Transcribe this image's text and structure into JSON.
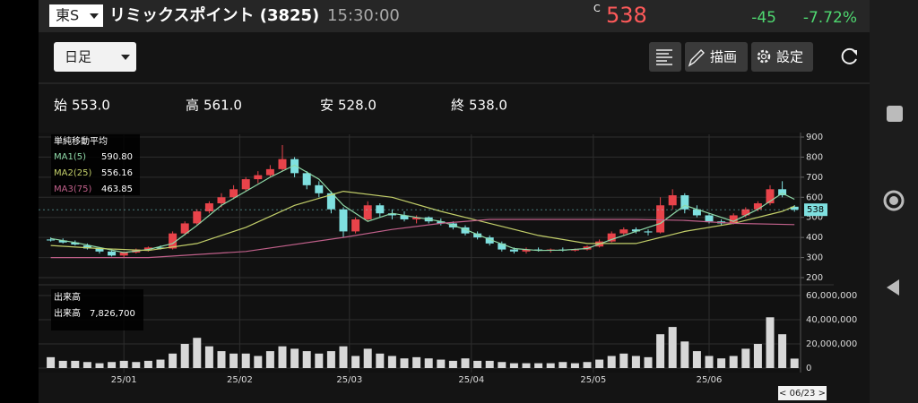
{
  "header": {
    "exchange": "東S",
    "name": "リミックスポイント (3825)",
    "time": "15:30:00",
    "flag": "C",
    "price": "538",
    "change": "-45",
    "change_pct": "-7.72%"
  },
  "toolbar": {
    "period": "日足",
    "draw": "描画",
    "settings": "設定"
  },
  "ohlc": [
    {
      "label": "始",
      "value": "553.0"
    },
    {
      "label": "高",
      "value": "561.0"
    },
    {
      "label": "安",
      "value": "528.0"
    },
    {
      "label": "終",
      "value": "538.0"
    }
  ],
  "navigator": "< 06/23 >",
  "chart_data": [
    {
      "type": "candlestick",
      "title": "単純移動平均",
      "marker_label": "538",
      "up_color": "#e8434a",
      "down_color": "#7fe0e0",
      "x": [
        1,
        3,
        5,
        7,
        9,
        11,
        13,
        15,
        17,
        19,
        21,
        23,
        25,
        27,
        29,
        31,
        33,
        35,
        37,
        39,
        41,
        43,
        45,
        47,
        49,
        51,
        53,
        55,
        57,
        59,
        61,
        63,
        65,
        67,
        69,
        71,
        73,
        75,
        77,
        79,
        81,
        83,
        85,
        87,
        89,
        91,
        93,
        95,
        97,
        99,
        101,
        103,
        105,
        107,
        109,
        111,
        113,
        115,
        117,
        119,
        121,
        123
      ],
      "open": [
        390,
        385,
        375,
        360,
        345,
        330,
        310,
        325,
        340,
        350,
        345,
        420,
        470,
        530,
        570,
        600,
        640,
        690,
        710,
        740,
        790,
        720,
        660,
        620,
        540,
        430,
        490,
        560,
        520,
        510,
        490,
        500,
        480,
        470,
        450,
        420,
        400,
        370,
        340,
        330,
        340,
        335,
        340,
        335,
        340,
        355,
        380,
        420,
        440,
        430,
        425,
        560,
        610,
        540,
        510,
        480,
        470,
        510,
        540,
        570,
        640,
        553
      ],
      "high": [
        400,
        395,
        385,
        370,
        350,
        335,
        330,
        345,
        355,
        360,
        430,
        480,
        540,
        580,
        620,
        660,
        700,
        730,
        760,
        860,
        800,
        730,
        680,
        630,
        550,
        500,
        580,
        570,
        540,
        530,
        510,
        505,
        495,
        480,
        460,
        430,
        410,
        380,
        350,
        350,
        350,
        345,
        350,
        345,
        360,
        390,
        430,
        450,
        450,
        440,
        600,
        640,
        620,
        560,
        520,
        490,
        520,
        550,
        580,
        660,
        680,
        561
      ],
      "low": [
        380,
        370,
        360,
        340,
        320,
        305,
        300,
        320,
        330,
        340,
        340,
        410,
        460,
        520,
        550,
        590,
        630,
        670,
        700,
        730,
        700,
        640,
        600,
        520,
        400,
        420,
        480,
        500,
        490,
        480,
        470,
        470,
        460,
        440,
        410,
        390,
        360,
        330,
        320,
        320,
        330,
        325,
        330,
        330,
        335,
        350,
        375,
        410,
        420,
        410,
        420,
        540,
        520,
        500,
        470,
        460,
        465,
        500,
        530,
        560,
        600,
        528
      ],
      "close": [
        385,
        375,
        365,
        345,
        330,
        310,
        325,
        340,
        350,
        345,
        420,
        470,
        530,
        570,
        600,
        640,
        690,
        710,
        740,
        790,
        720,
        660,
        620,
        540,
        430,
        490,
        560,
        520,
        510,
        490,
        500,
        480,
        470,
        450,
        420,
        400,
        370,
        340,
        330,
        340,
        335,
        340,
        335,
        340,
        355,
        380,
        420,
        440,
        430,
        425,
        560,
        610,
        540,
        510,
        480,
        470,
        510,
        540,
        570,
        640,
        610,
        538
      ],
      "series": [
        {
          "name": "MA1(5)",
          "legend_value": "590.80",
          "color": "#8fd9a8",
          "x": [
            1,
            5,
            9,
            13,
            17,
            21,
            25,
            29,
            33,
            37,
            41,
            45,
            49,
            53,
            57,
            61,
            65,
            69,
            73,
            77,
            81,
            85,
            89,
            93,
            97,
            101,
            105,
            109,
            113,
            117,
            121,
            123
          ],
          "values": [
            395,
            375,
            350,
            325,
            340,
            370,
            460,
            560,
            630,
            700,
            760,
            690,
            560,
            480,
            520,
            500,
            480,
            440,
            390,
            345,
            335,
            337,
            345,
            390,
            430,
            470,
            560,
            520,
            480,
            540,
            620,
            590
          ]
        },
        {
          "name": "MA2(25)",
          "legend_value": "556.16",
          "color": "#c3cf6a",
          "x": [
            1,
            9,
            17,
            25,
            33,
            41,
            49,
            57,
            65,
            73,
            81,
            89,
            97,
            105,
            113,
            121,
            123
          ],
          "values": [
            360,
            345,
            335,
            370,
            450,
            560,
            630,
            600,
            530,
            470,
            410,
            370,
            370,
            430,
            470,
            530,
            556
          ]
        },
        {
          "name": "MA3(75)",
          "legend_value": "463.85",
          "color": "#c0608a",
          "x": [
            1,
            17,
            33,
            49,
            57,
            65,
            73,
            81,
            89,
            97,
            105,
            113,
            123
          ],
          "values": [
            300,
            300,
            330,
            400,
            440,
            470,
            490,
            490,
            490,
            490,
            485,
            470,
            464
          ]
        }
      ],
      "xlim": [
        -1,
        124
      ],
      "ylim": [
        200,
        900
      ],
      "yticks": [
        200,
        300,
        400,
        500,
        600,
        700,
        800,
        900
      ],
      "grid": true
    },
    {
      "type": "bar",
      "title": "出来高",
      "legend_label": "出来高",
      "legend_value": "7,826,700",
      "color": "#d8d8d8",
      "x": [
        1,
        3,
        5,
        7,
        9,
        11,
        13,
        15,
        17,
        19,
        21,
        23,
        25,
        27,
        29,
        31,
        33,
        35,
        37,
        39,
        41,
        43,
        45,
        47,
        49,
        51,
        53,
        55,
        57,
        59,
        61,
        63,
        65,
        67,
        69,
        71,
        73,
        75,
        77,
        79,
        81,
        83,
        85,
        87,
        89,
        91,
        93,
        95,
        97,
        99,
        101,
        103,
        105,
        107,
        109,
        111,
        113,
        115,
        117,
        119,
        121,
        123
      ],
      "values": [
        9000000,
        6000000,
        6000000,
        5000000,
        4000000,
        5000000,
        6000000,
        5000000,
        6000000,
        7000000,
        12000000,
        20000000,
        25000000,
        18000000,
        14000000,
        12000000,
        12000000,
        10000000,
        14000000,
        18000000,
        16000000,
        14000000,
        12000000,
        14000000,
        18000000,
        10000000,
        16000000,
        12000000,
        10000000,
        8000000,
        9000000,
        8000000,
        7000000,
        6000000,
        8000000,
        6000000,
        6000000,
        5000000,
        4000000,
        4000000,
        4000000,
        4000000,
        5000000,
        4000000,
        5000000,
        7000000,
        10000000,
        12000000,
        10000000,
        9000000,
        28000000,
        34000000,
        22000000,
        14000000,
        10000000,
        8000000,
        10000000,
        16000000,
        20000000,
        42000000,
        28000000,
        7826700
      ],
      "xlim": [
        -1,
        124
      ],
      "ylim": [
        0,
        60000000
      ],
      "yticks": [
        0,
        {
          "value": 20000000,
          "label": "20,000,000"
        },
        {
          "value": 40000000,
          "label": "40,000,000"
        },
        {
          "value": 60000000,
          "label": "60,000,000"
        }
      ],
      "xticks": [
        {
          "value": 13,
          "label": "25/01"
        },
        {
          "value": 32,
          "label": "25/02"
        },
        {
          "value": 50,
          "label": "25/03"
        },
        {
          "value": 70,
          "label": "25/04"
        },
        {
          "value": 90,
          "label": "25/05"
        },
        {
          "value": 109,
          "label": "25/06"
        }
      ],
      "grid": true
    }
  ]
}
